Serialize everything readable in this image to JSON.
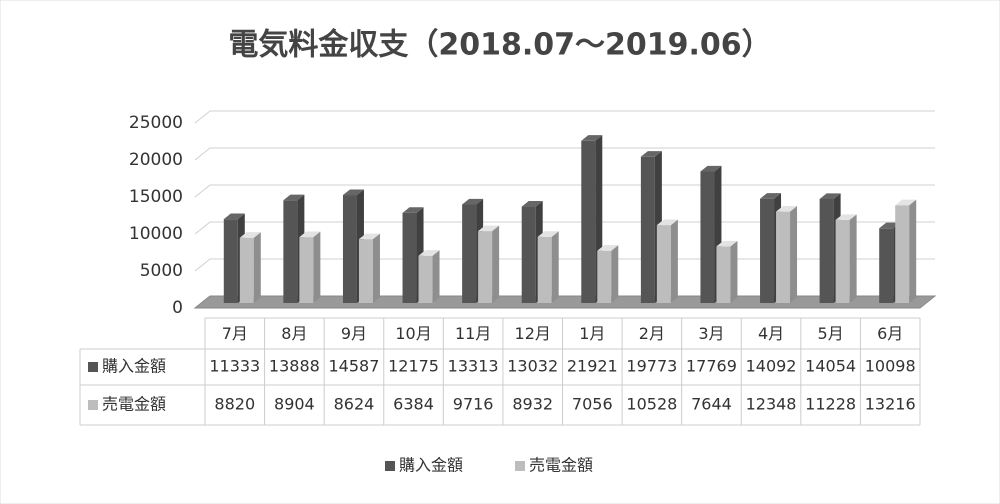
{
  "chart_data": {
    "type": "bar3d",
    "title": "電気料金収支（2018.07～2019.06）",
    "categories": [
      "7月",
      "8月",
      "9月",
      "10月",
      "11月",
      "12月",
      "1月",
      "2月",
      "3月",
      "4月",
      "5月",
      "6月"
    ],
    "series": [
      {
        "name": "購入金額",
        "color": "#555555",
        "values": [
          11333,
          13888,
          14587,
          12175,
          13313,
          13032,
          21921,
          19773,
          17769,
          14092,
          14054,
          10098
        ]
      },
      {
        "name": "売電金額",
        "color": "#bdbdbd",
        "values": [
          8820,
          8904,
          8624,
          6384,
          9716,
          8932,
          7056,
          10528,
          7644,
          12348,
          11228,
          13216
        ]
      }
    ],
    "ylim": [
      0,
      25000
    ],
    "yticks": [
      0,
      5000,
      10000,
      15000,
      20000,
      25000
    ],
    "grid": true,
    "legend": "bottom",
    "data_table": true
  }
}
